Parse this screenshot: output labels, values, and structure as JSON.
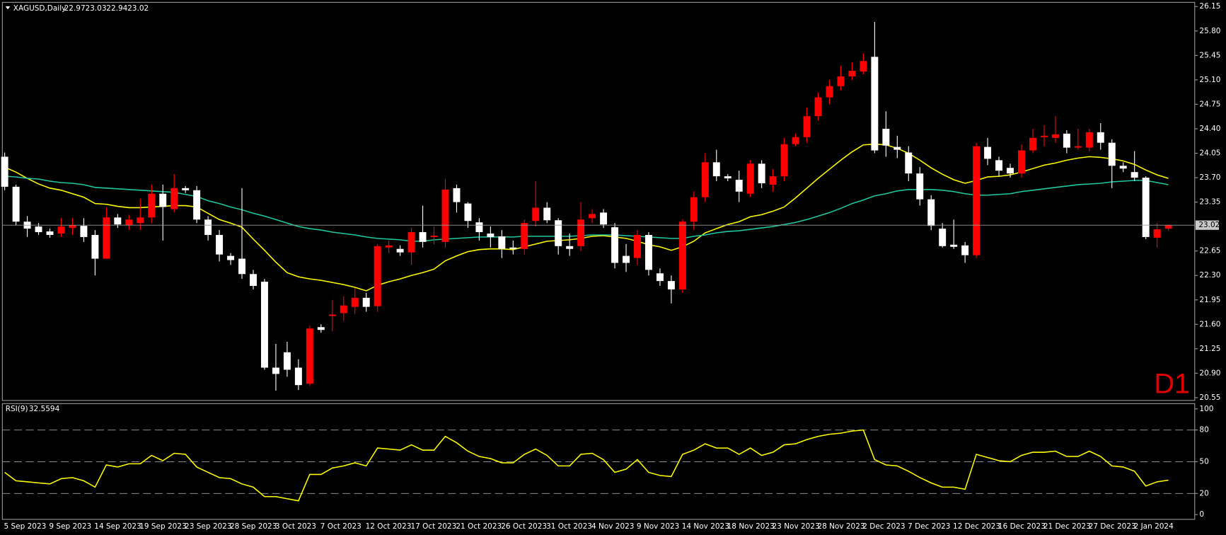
{
  "chart_data": [
    {
      "type": "candlestick",
      "title": "XAGUSD,Daily",
      "annotation": "D1",
      "categories": [
        "5 Sep 2023",
        null,
        null,
        null,
        "9 Sep 2023",
        null,
        null,
        null,
        "14 Sep 2023",
        null,
        null,
        null,
        "19 Sep 2023",
        null,
        null,
        null,
        "23 Sep 2023",
        null,
        null,
        null,
        "28 Sep 2023",
        null,
        null,
        null,
        "3 Oct 2023",
        null,
        null,
        null,
        "7 Oct 2023",
        null,
        null,
        null,
        "12 Oct 2023",
        null,
        null,
        null,
        "17 Oct 2023",
        null,
        null,
        null,
        "21 Oct 2023",
        null,
        null,
        null,
        "26 Oct 2023",
        null,
        null,
        null,
        "31 Oct 2023",
        null,
        null,
        null,
        "4 Nov 2023",
        null,
        null,
        null,
        "9 Nov 2023",
        null,
        null,
        null,
        "14 Nov 2023",
        null,
        null,
        null,
        "18 Nov 2023",
        null,
        null,
        null,
        "23 Nov 2023",
        null,
        null,
        null,
        "28 Nov 2023",
        null,
        null,
        null,
        "2 Dec 2023",
        null,
        null,
        null,
        "7 Dec 2023",
        null,
        null,
        null,
        "12 Dec 2023",
        null,
        null,
        null,
        "16 Dec 2023",
        null,
        null,
        null,
        "21 Dec 2023",
        null,
        null,
        null,
        "27 Dec 2023",
        null,
        null,
        null,
        "2 Jan 2024",
        null,
        null,
        null
      ],
      "open": [
        24.0,
        23.57,
        23.07,
        23.0,
        22.93,
        22.9,
        22.98,
        23.01,
        22.88,
        22.54,
        23.13,
        23.02,
        23.05,
        23.13,
        23.47,
        23.25,
        23.55,
        23.52,
        23.1,
        22.88,
        22.58,
        22.54,
        22.32,
        22.21,
        20.98,
        21.2,
        20.98,
        20.75,
        21.56,
        21.72,
        21.76,
        21.85,
        21.98,
        21.86,
        22.7,
        22.68,
        22.63,
        22.92,
        22.85,
        22.78,
        23.55,
        23.33,
        23.06,
        22.9,
        22.86,
        22.7,
        22.68,
        23.08,
        23.27,
        23.09,
        22.72,
        22.72,
        23.12,
        23.2,
        22.99,
        22.58,
        22.55,
        22.88,
        22.33,
        22.22,
        22.1,
        23.07,
        23.42,
        23.92,
        23.72,
        23.67,
        23.47,
        23.9,
        23.6,
        23.72,
        24.18,
        24.28,
        24.58,
        24.85,
        25.01,
        25.15,
        25.22,
        25.43,
        24.4,
        24.14,
        24.06,
        23.76,
        23.39,
        22.97,
        22.74,
        22.73,
        22.59,
        24.14,
        23.95,
        23.84,
        23.76,
        24.09,
        24.28,
        24.27,
        24.33,
        24.13,
        24.13,
        24.35,
        24.2,
        23.87,
        23.78,
        23.7,
        22.84,
        22.97
      ],
      "high": [
        24.06,
        23.6,
        23.15,
        23.05,
        22.97,
        23.12,
        23.12,
        23.12,
        22.95,
        23.27,
        23.18,
        23.17,
        23.4,
        23.6,
        23.6,
        23.75,
        23.58,
        23.58,
        23.15,
        22.95,
        22.62,
        23.55,
        22.38,
        22.25,
        21.32,
        21.35,
        21.1,
        21.58,
        21.6,
        21.95,
        22.0,
        22.12,
        22.05,
        22.75,
        22.8,
        22.73,
        22.98,
        23.3,
        23.0,
        23.68,
        23.6,
        23.35,
        23.12,
        23.0,
        22.95,
        22.8,
        23.1,
        23.65,
        23.35,
        23.12,
        22.9,
        23.35,
        23.25,
        23.25,
        23.05,
        22.75,
        22.95,
        22.92,
        22.4,
        22.3,
        23.1,
        23.5,
        24.05,
        24.1,
        23.75,
        23.8,
        23.95,
        23.95,
        23.82,
        24.27,
        24.33,
        24.7,
        24.92,
        25.1,
        25.3,
        25.35,
        25.48,
        25.93,
        24.65,
        24.3,
        24.15,
        23.85,
        23.45,
        23.05,
        23.1,
        22.78,
        24.2,
        24.27,
        24.0,
        23.9,
        24.18,
        24.4,
        24.45,
        24.58,
        24.38,
        24.4,
        24.4,
        24.48,
        24.25,
        23.92,
        24.08,
        23.72,
        23.05,
        23.03
      ],
      "low": [
        23.52,
        23.02,
        22.85,
        22.88,
        22.84,
        22.85,
        22.88,
        22.78,
        22.3,
        22.54,
        22.98,
        22.95,
        22.95,
        23.05,
        22.8,
        23.2,
        23.48,
        23.05,
        22.8,
        22.5,
        22.45,
        22.25,
        22.1,
        20.95,
        20.65,
        20.85,
        20.66,
        20.72,
        21.48,
        21.5,
        21.65,
        21.75,
        21.78,
        21.78,
        22.62,
        22.58,
        22.45,
        22.7,
        22.75,
        22.7,
        23.2,
        22.98,
        22.8,
        22.7,
        22.55,
        22.6,
        22.6,
        23.0,
        23.05,
        22.6,
        22.58,
        22.65,
        23.05,
        22.98,
        22.4,
        22.35,
        22.45,
        22.3,
        22.15,
        21.9,
        22.05,
        22.95,
        23.35,
        23.65,
        23.65,
        23.35,
        23.42,
        23.55,
        23.5,
        23.65,
        24.15,
        24.2,
        24.52,
        24.75,
        24.95,
        25.1,
        25.18,
        24.05,
        24.0,
        23.98,
        23.65,
        23.3,
        22.95,
        22.7,
        22.68,
        22.48,
        22.55,
        23.88,
        23.72,
        23.7,
        23.7,
        24.05,
        24.15,
        24.2,
        24.05,
        24.1,
        24.08,
        24.1,
        23.55,
        23.78,
        23.65,
        22.82,
        22.7,
        22.94
      ],
      "close": [
        23.57,
        23.07,
        22.97,
        22.92,
        22.88,
        23.0,
        23.02,
        22.85,
        22.54,
        23.13,
        23.03,
        23.1,
        23.13,
        23.47,
        23.28,
        23.55,
        23.52,
        23.1,
        22.88,
        22.6,
        22.52,
        22.32,
        22.15,
        20.98,
        20.89,
        20.95,
        20.73,
        21.54,
        21.52,
        21.74,
        21.87,
        21.98,
        21.85,
        22.72,
        22.73,
        22.63,
        22.92,
        22.78,
        22.87,
        23.53,
        23.35,
        23.08,
        22.92,
        22.85,
        22.68,
        22.68,
        23.05,
        23.27,
        23.09,
        22.72,
        22.68,
        23.1,
        23.18,
        23.03,
        22.48,
        22.48,
        22.88,
        22.38,
        22.22,
        22.1,
        23.07,
        23.42,
        23.92,
        23.72,
        23.69,
        23.5,
        23.9,
        23.62,
        23.72,
        24.18,
        24.28,
        24.58,
        24.85,
        25.01,
        25.15,
        25.23,
        25.37,
        24.09,
        24.16,
        24.1,
        23.76,
        23.39,
        23.01,
        22.72,
        22.71,
        22.59,
        24.15,
        23.97,
        23.8,
        23.76,
        24.09,
        24.27,
        24.3,
        24.32,
        24.13,
        24.15,
        24.35,
        24.2,
        23.87,
        23.83,
        23.7,
        22.85,
        22.96,
        23.02
      ],
      "up_color": "#ff0000",
      "down_color": "#ffffff",
      "lines": [
        {
          "color": "#ffff00",
          "values": [
            23.85,
            23.78,
            23.69,
            23.61,
            23.55,
            23.52,
            23.47,
            23.42,
            23.33,
            23.32,
            23.29,
            23.27,
            23.27,
            23.28,
            23.29,
            23.3,
            23.3,
            23.28,
            23.19,
            23.1,
            23.05,
            22.99,
            22.82,
            22.66,
            22.49,
            22.34,
            22.28,
            22.25,
            22.23,
            22.2,
            22.17,
            22.13,
            22.08,
            22.16,
            22.21,
            22.25,
            22.3,
            22.34,
            22.39,
            22.51,
            22.58,
            22.64,
            22.67,
            22.68,
            22.68,
            22.67,
            22.71,
            22.75,
            22.79,
            22.8,
            22.81,
            22.83,
            22.86,
            22.87,
            22.85,
            22.83,
            22.79,
            22.74,
            22.71,
            22.66,
            22.71,
            22.79,
            22.91,
            22.97,
            23.03,
            23.07,
            23.14,
            23.17,
            23.22,
            23.28,
            23.41,
            23.55,
            23.69,
            23.82,
            23.95,
            24.07,
            24.17,
            24.18,
            24.17,
            24.12,
            24.05,
            23.95,
            23.84,
            23.75,
            23.67,
            23.62,
            23.66,
            23.71,
            23.72,
            23.74,
            23.78,
            23.83,
            23.88,
            23.91,
            23.95,
            23.98,
            24.0,
            23.99,
            23.97,
            23.94,
            23.89,
            23.81,
            23.74,
            23.69
          ]
        },
        {
          "color": "#20c8a0",
          "values": [
            23.72,
            23.71,
            23.69,
            23.68,
            23.65,
            23.63,
            23.62,
            23.6,
            23.56,
            23.55,
            23.54,
            23.53,
            23.52,
            23.51,
            23.5,
            23.49,
            23.46,
            23.43,
            23.37,
            23.33,
            23.28,
            23.24,
            23.19,
            23.15,
            23.1,
            23.05,
            23.0,
            22.97,
            22.95,
            22.92,
            22.9,
            22.88,
            22.85,
            22.83,
            22.82,
            22.81,
            22.79,
            22.79,
            22.81,
            22.82,
            22.83,
            22.84,
            22.85,
            22.85,
            22.85,
            22.85,
            22.86,
            22.86,
            22.86,
            22.86,
            22.86,
            22.87,
            22.88,
            22.88,
            22.88,
            22.87,
            22.86,
            22.85,
            22.84,
            22.83,
            22.83,
            22.86,
            22.88,
            22.91,
            22.93,
            22.94,
            22.96,
            22.98,
            23.0,
            23.03,
            23.06,
            23.1,
            23.15,
            23.2,
            23.26,
            23.33,
            23.38,
            23.44,
            23.47,
            23.51,
            23.53,
            23.53,
            23.53,
            23.52,
            23.5,
            23.47,
            23.45,
            23.45,
            23.46,
            23.47,
            23.5,
            23.52,
            23.54,
            23.56,
            23.58,
            23.6,
            23.61,
            23.62,
            23.64,
            23.65,
            23.66,
            23.66,
            23.63,
            23.6
          ]
        }
      ],
      "ylim": [
        20.51,
        26.21
      ],
      "yticks": [
        20.55,
        {
          "value": 20.9,
          "label": "20.90"
        },
        21.25,
        {
          "value": 21.6,
          "label": "21.60"
        },
        21.95,
        {
          "value": 22.3,
          "label": "22.30"
        },
        22.65,
        23.35,
        {
          "value": 23.7,
          "label": "23.70"
        },
        24.05,
        {
          "value": 24.4,
          "label": "24.40"
        },
        24.75,
        {
          "value": 25.1,
          "label": "25.10"
        },
        25.45,
        {
          "value": 25.8,
          "label": "25.80"
        },
        26.15
      ]
    },
    {
      "type": "line",
      "title": "RSI(9)",
      "color": "#ffff00",
      "values": [
        40,
        32,
        31,
        30,
        29,
        34,
        35,
        32,
        26,
        47,
        45,
        48,
        48,
        56,
        51,
        58,
        57,
        45,
        40,
        35,
        34,
        29,
        26,
        17,
        17,
        15,
        13,
        38,
        38,
        44,
        46,
        49,
        46,
        63,
        62,
        61,
        66,
        61,
        61,
        74,
        68,
        60,
        55,
        53,
        49,
        49,
        57,
        62,
        56,
        46,
        46,
        57,
        58,
        52,
        40,
        43,
        52,
        40,
        37,
        36,
        57,
        61,
        67,
        63,
        63,
        57,
        63,
        56,
        59,
        66,
        67,
        71,
        74,
        76,
        77,
        79,
        80,
        52,
        47,
        46,
        41,
        35,
        30,
        26,
        26,
        24,
        57,
        54,
        51,
        50,
        56,
        59,
        59,
        60,
        55,
        55,
        60,
        55,
        46,
        45,
        41,
        27,
        31,
        32.5594
      ],
      "ylim": [
        -4.5,
        105
      ],
      "yticks": [
        0,
        20,
        50,
        80,
        100
      ],
      "levels": [
        20,
        50,
        80
      ]
    }
  ]
}
